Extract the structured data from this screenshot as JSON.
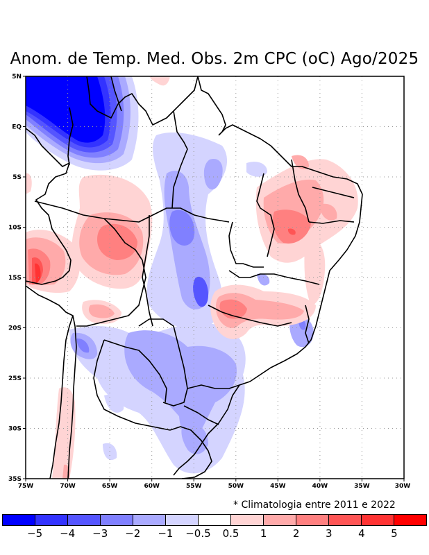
{
  "title": "Anom. de Temp. Med. Obs. 2m CPC (oC) Ago/2025",
  "footnote": "* Climatologia entre 2011 e 2022",
  "map": {
    "lon_range": [
      -75,
      -30
    ],
    "lat_range": [
      -35,
      5
    ],
    "lon_ticks": [
      {
        "value": -75,
        "label": "75W"
      },
      {
        "value": -70,
        "label": "70W"
      },
      {
        "value": -65,
        "label": "65W"
      },
      {
        "value": -60,
        "label": "60W"
      },
      {
        "value": -55,
        "label": "55W"
      },
      {
        "value": -50,
        "label": "50W"
      },
      {
        "value": -45,
        "label": "45W"
      },
      {
        "value": -40,
        "label": "40W"
      },
      {
        "value": -35,
        "label": "35W"
      },
      {
        "value": -30,
        "label": "30W"
      }
    ],
    "lat_ticks": [
      {
        "value": 5,
        "label": "5N"
      },
      {
        "value": 0,
        "label": "EQ"
      },
      {
        "value": -5,
        "label": "5S"
      },
      {
        "value": -10,
        "label": "10S"
      },
      {
        "value": -15,
        "label": "15S"
      },
      {
        "value": -20,
        "label": "20S"
      },
      {
        "value": -25,
        "label": "25S"
      },
      {
        "value": -30,
        "label": "30S"
      },
      {
        "value": -35,
        "label": "35S"
      }
    ],
    "gridlines": true
  },
  "colorbar": {
    "colors": [
      "#0000ff",
      "#3333ff",
      "#5555ff",
      "#8080ff",
      "#aaaaff",
      "#d4d4ff",
      "#ffffff",
      "#ffd4d4",
      "#ffaaaa",
      "#ff8080",
      "#ff5555",
      "#ff3333",
      "#ff0000"
    ],
    "labels": [
      "−5",
      "−4",
      "−3",
      "−2",
      "−1",
      "−0.5",
      "0.5",
      "1",
      "2",
      "3",
      "4",
      "5"
    ]
  }
}
